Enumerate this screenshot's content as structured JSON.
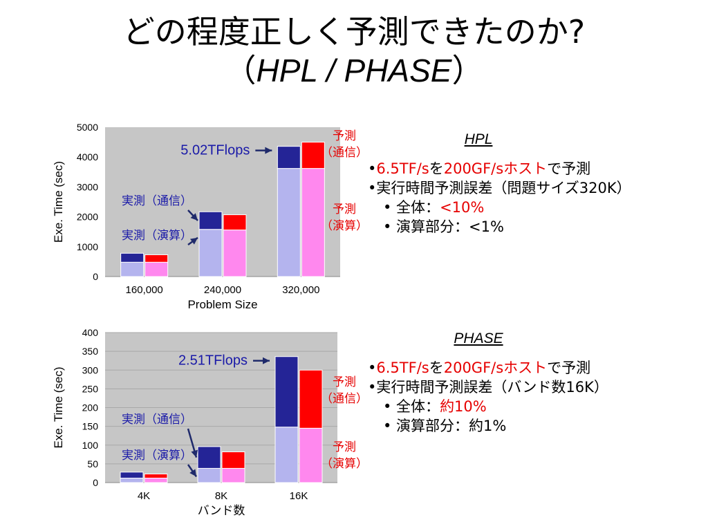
{
  "title": {
    "line1": "どの程度正しく予測できたのか?",
    "open": "（",
    "sub": "HPL / PHASE",
    "close": "）"
  },
  "colors": {
    "meas_comp": "#b4b4ee",
    "meas_comm": "#242496",
    "pred_comp": "#ff88ee",
    "pred_comm": "#ff0000",
    "plot_bg": "#c6c6c6",
    "arrow": "#1f2a6b",
    "annot_blue": "#1a1aa8",
    "annot_red": "#e60000"
  },
  "chart_data": [
    {
      "type": "bar",
      "stacked": true,
      "grouped": true,
      "categories": [
        "160,000",
        "240,000",
        "320,000"
      ],
      "xlabel": "Problem Size",
      "ylabel": "Exe. Time (sec)",
      "ylim": [
        0,
        5000
      ],
      "yticks": [
        "0",
        "1000",
        "2000",
        "3000",
        "4000",
        "5000"
      ],
      "grid": false,
      "series": [
        {
          "name": "実測（演算）",
          "stack": "measured",
          "values": [
            480,
            1580,
            3620
          ]
        },
        {
          "name": "実測（通信）",
          "stack": "measured",
          "values": [
            300,
            590,
            740
          ]
        },
        {
          "name": "予測（演算）",
          "stack": "predicted",
          "values": [
            480,
            1560,
            3620
          ]
        },
        {
          "name": "予測（通信）",
          "stack": "predicted",
          "values": [
            250,
            510,
            880
          ]
        }
      ],
      "annotations": {
        "flops": "5.02TFlops",
        "meas_comm": "実測（通信）",
        "meas_comp": "実測（演算）",
        "pred_comm": [
          "予測",
          "（通信）"
        ],
        "pred_comp": [
          "予測",
          "（演算）"
        ]
      }
    },
    {
      "type": "bar",
      "stacked": true,
      "grouped": true,
      "categories": [
        "4K",
        "8K",
        "16K"
      ],
      "xlabel": "バンド数",
      "ylabel": "Exe. Time (sec)",
      "ylim": [
        0,
        400
      ],
      "yticks": [
        "0",
        "50",
        "100",
        "150",
        "200",
        "250",
        "300",
        "350",
        "400"
      ],
      "grid": true,
      "series": [
        {
          "name": "実測（演算）",
          "stack": "measured",
          "values": [
            12,
            38,
            148
          ]
        },
        {
          "name": "実測（通信）",
          "stack": "measured",
          "values": [
            16,
            58,
            188
          ]
        },
        {
          "name": "予測（演算）",
          "stack": "predicted",
          "values": [
            12,
            38,
            145
          ]
        },
        {
          "name": "予測（通信）",
          "stack": "predicted",
          "values": [
            11,
            44,
            155
          ]
        }
      ],
      "annotations": {
        "flops": "2.51TFlops",
        "meas_comm": "実測（通信）",
        "meas_comp": "実測（演算）",
        "pred_comm": [
          "予測",
          "（通信）"
        ],
        "pred_comp": [
          "予測",
          "（演算）"
        ]
      }
    }
  ],
  "notes_hpl": {
    "heading": "HPL",
    "l1_pre": "•",
    "l1_red1": "6.5TF/s",
    "l1_mid": "を",
    "l1_red2": "200GF/sホスト",
    "l1_post": "で予測",
    "l2": "•実行時間予測誤差（問題サイズ320K）",
    "l3_pre": "• 全体：",
    "l3_red": "<10%",
    "l4": "• 演算部分：<1%"
  },
  "notes_phase": {
    "heading": "PHASE",
    "l1_pre": "•",
    "l1_red1": "6.5TF/s",
    "l1_mid": "を",
    "l1_red2": "200GF/sホスト",
    "l1_post": "で予測",
    "l2": "•実行時間予測誤差（バンド数16K）",
    "l3_pre": "• 全体：",
    "l3_red": "約10%",
    "l4": "• 演算部分：約1%"
  }
}
